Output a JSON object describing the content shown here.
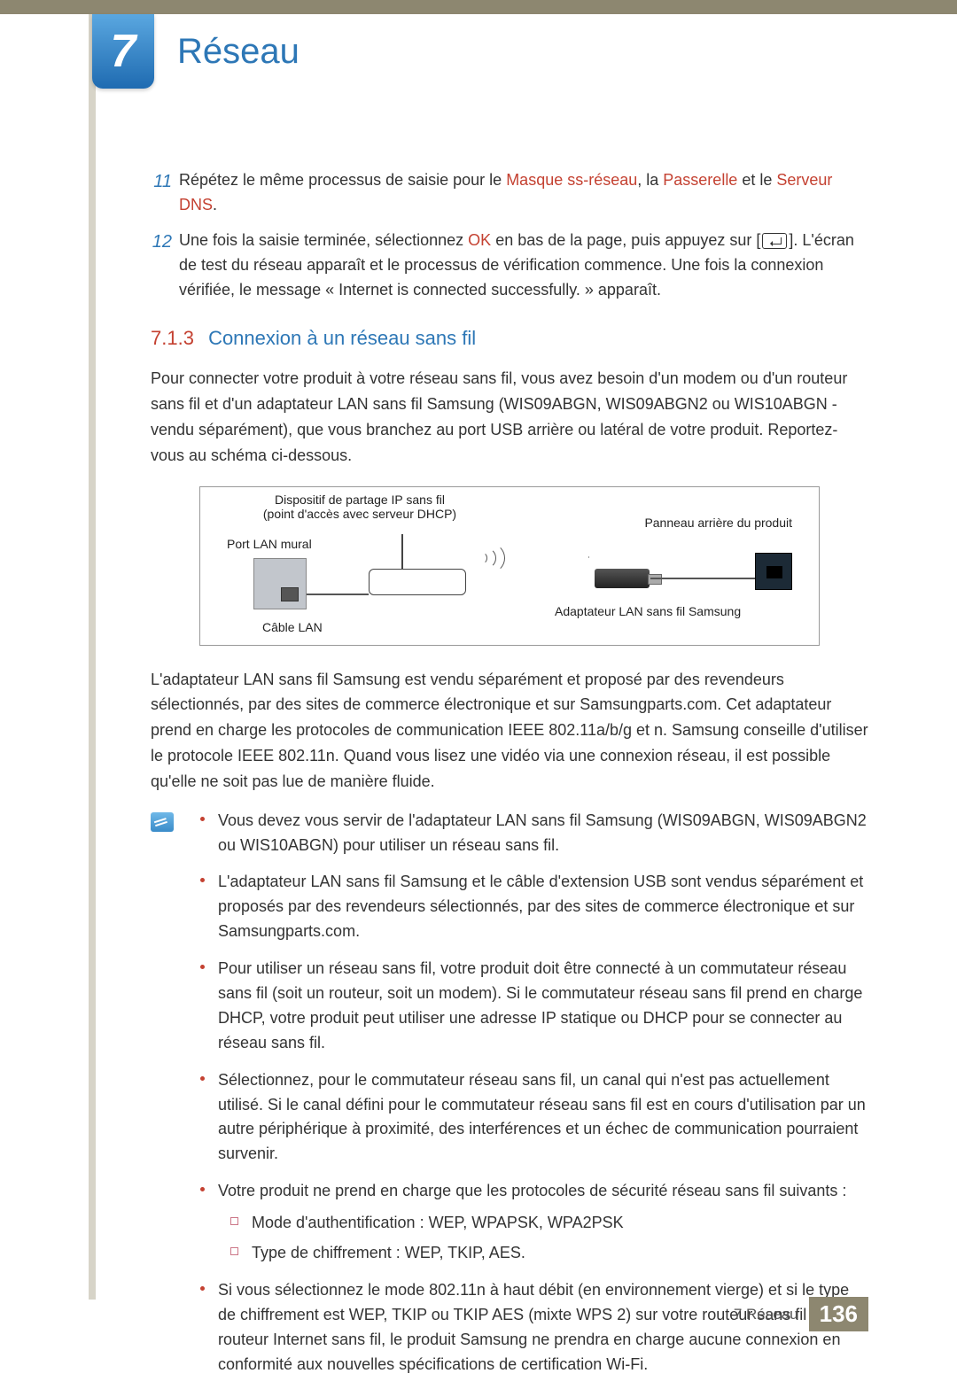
{
  "chapter": {
    "number": "7",
    "title": "Réseau"
  },
  "steps": [
    {
      "num": "11",
      "parts": [
        {
          "t": "Répétez le même processus de saisie pour le "
        },
        {
          "t": "Masque ss-réseau",
          "hl": true
        },
        {
          "t": ", la "
        },
        {
          "t": "Passerelle",
          "hl": true
        },
        {
          "t": " et le "
        },
        {
          "t": "Serveur DNS",
          "hl": true
        },
        {
          "t": "."
        }
      ]
    },
    {
      "num": "12",
      "parts": [
        {
          "t": "Une fois la saisie terminée, sélectionnez "
        },
        {
          "t": "OK",
          "hl": true
        },
        {
          "t": " en bas de la page, puis appuyez sur ["
        },
        {
          "icon": "enter"
        },
        {
          "t": "]. L'écran de test du réseau apparaît et le processus de vérification commence. Une fois la connexion vérifiée, le message « Internet is connected successfully. » apparaît."
        }
      ]
    }
  ],
  "section": {
    "num": "7.1.3",
    "title": "Connexion à un réseau sans fil"
  },
  "intro": "Pour connecter votre produit à votre réseau sans fil, vous avez besoin d'un modem ou d'un routeur sans fil et d'un adaptateur LAN sans fil Samsung (WIS09ABGN, WIS09ABGN2 ou WIS10ABGN - vendu séparément), que vous branchez au port USB arrière ou latéral de votre produit. Reportez-vous au schéma ci-dessous.",
  "diagram": {
    "ip_device_l1": "Dispositif de partage IP sans fil",
    "ip_device_l2": "(point d'accès avec serveur DHCP)",
    "wall_port": "Port LAN mural",
    "lan_cable": "Câble LAN",
    "back_panel": "Panneau arrière du produit",
    "adapter": "Adaptateur LAN sans fil Samsung"
  },
  "after_diagram": "L'adaptateur LAN sans fil Samsung est vendu séparément et proposé par des revendeurs sélectionnés, par des sites de commerce électronique et sur Samsungparts.com. Cet adaptateur prend en charge les protocoles de communication IEEE 802.11a/b/g et n. Samsung conseille d'utiliser le protocole IEEE 802.11n. Quand vous lisez une vidéo via une connexion réseau, il est possible qu'elle ne soit pas lue de manière fluide.",
  "notes": [
    "Vous devez vous servir de l'adaptateur LAN sans fil Samsung (WIS09ABGN, WIS09ABGN2 ou WIS10ABGN) pour utiliser un réseau sans fil.",
    "L'adaptateur LAN sans fil Samsung et le câble d'extension USB sont vendus séparément et proposés par des revendeurs sélectionnés, par des sites de commerce électronique et sur Samsungparts.com.",
    "Pour utiliser un réseau sans fil, votre produit doit être connecté à un commutateur réseau sans fil (soit un routeur, soit un modem). Si le commutateur réseau sans fil prend en charge DHCP, votre produit peut utiliser une adresse IP statique ou DHCP pour se connecter au réseau sans fil.",
    "Sélectionnez, pour le commutateur réseau sans fil, un canal qui n'est pas actuellement utilisé. Si le canal défini pour le commutateur réseau sans fil est en cours d'utilisation par un autre périphérique à proximité, des interférences et un échec de communication pourraient survenir.",
    "Votre produit ne prend en charge que les protocoles de sécurité réseau sans fil suivants :",
    "Si vous sélectionnez le mode 802.11n à haut débit (en environnement vierge) et si le type de chiffrement est WEP, TKIP ou TKIP AES (mixte WPS 2) sur votre routeur sans fil ou routeur Internet sans fil, le produit Samsung ne prendra en charge aucune connexion en conformité aux nouvelles spécifications de certification Wi-Fi."
  ],
  "sub_notes": [
    "Mode d'authentification : WEP, WPAPSK, WPA2PSK",
    "Type de chiffrement : WEP, TKIP, AES."
  ],
  "footer": {
    "label": "7 Réseau",
    "page": "136"
  },
  "colors": {
    "topbar": "#8d8770",
    "sidebar": "#d7d4c8",
    "blue": "#2d77b6",
    "red": "#c44131",
    "text": "#333333"
  }
}
